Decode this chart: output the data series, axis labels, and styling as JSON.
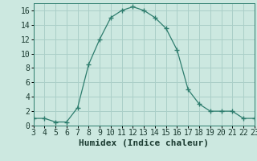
{
  "x": [
    3,
    4,
    5,
    6,
    7,
    8,
    9,
    10,
    11,
    12,
    13,
    14,
    15,
    16,
    17,
    18,
    19,
    20,
    21,
    22,
    23
  ],
  "y": [
    1,
    1,
    0.5,
    0.5,
    2.5,
    8.5,
    12,
    15,
    16,
    16.5,
    16,
    15,
    13.5,
    10.5,
    5,
    3,
    2,
    2,
    2,
    1,
    1
  ],
  "line_color": "#2e7d6e",
  "marker": "+",
  "marker_size": 4,
  "bg_color": "#cce8e0",
  "grid_color": "#aacfc8",
  "xlabel": "Humidex (Indice chaleur)",
  "xlim": [
    3,
    23
  ],
  "ylim": [
    0,
    17
  ],
  "yticks": [
    0,
    2,
    4,
    6,
    8,
    10,
    12,
    14,
    16
  ],
  "xticks": [
    3,
    4,
    5,
    6,
    7,
    8,
    9,
    10,
    11,
    12,
    13,
    14,
    15,
    16,
    17,
    18,
    19,
    20,
    21,
    22,
    23
  ],
  "tick_fontsize": 7,
  "xlabel_fontsize": 8
}
